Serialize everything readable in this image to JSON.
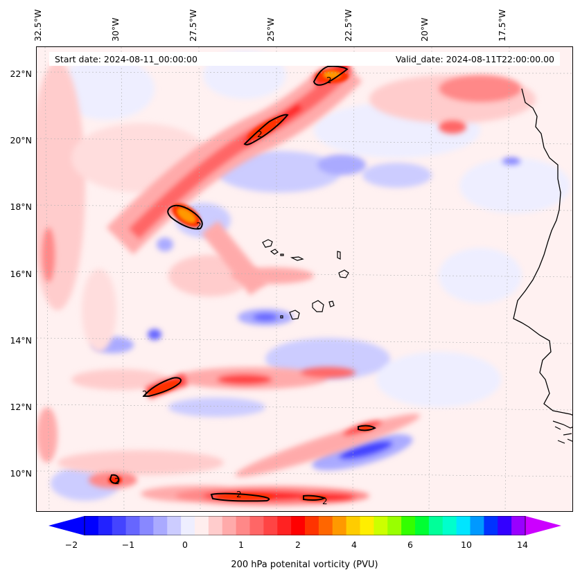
{
  "header": {
    "start_date": "Start date: 2024-08-11_00:00:00",
    "valid_date": "Valid_date: 2024-08-11T22:00:00.00"
  },
  "lon_ticks": [
    "32.5°W",
    "30°W",
    "27.5°W",
    "25°W",
    "22.5°W",
    "20°W",
    "17.5°W"
  ],
  "lat_ticks": [
    "22°N",
    "20°N",
    "18°N",
    "16°N",
    "14°N",
    "12°N",
    "10°N"
  ],
  "colorbar": {
    "label": "200 hPa potenital vorticity (PVU)",
    "ticks": [
      "−2",
      "−1",
      "0",
      "1",
      "2",
      "4",
      "6",
      "10",
      "14"
    ],
    "colors": [
      "#0000ff",
      "#2222ff",
      "#4444ff",
      "#6666ff",
      "#8888ff",
      "#aaaaff",
      "#ccccff",
      "#eeeeff",
      "#ffeeee",
      "#ffcccc",
      "#ffaaaa",
      "#ff8888",
      "#ff6666",
      "#ff4444",
      "#ff2222",
      "#ff0000",
      "#ff3300",
      "#ff6600",
      "#ff9900",
      "#ffcc00",
      "#ffee00",
      "#ccff00",
      "#99ff00",
      "#33ff00",
      "#00ff33",
      "#00ff99",
      "#00ffcc",
      "#00e5ff",
      "#0099ff",
      "#0033ff",
      "#3300ff",
      "#9900ff"
    ],
    "extend_min_color": "#0000ff",
    "extend_max_color": "#cc00ff"
  },
  "contour_label": "2"
}
